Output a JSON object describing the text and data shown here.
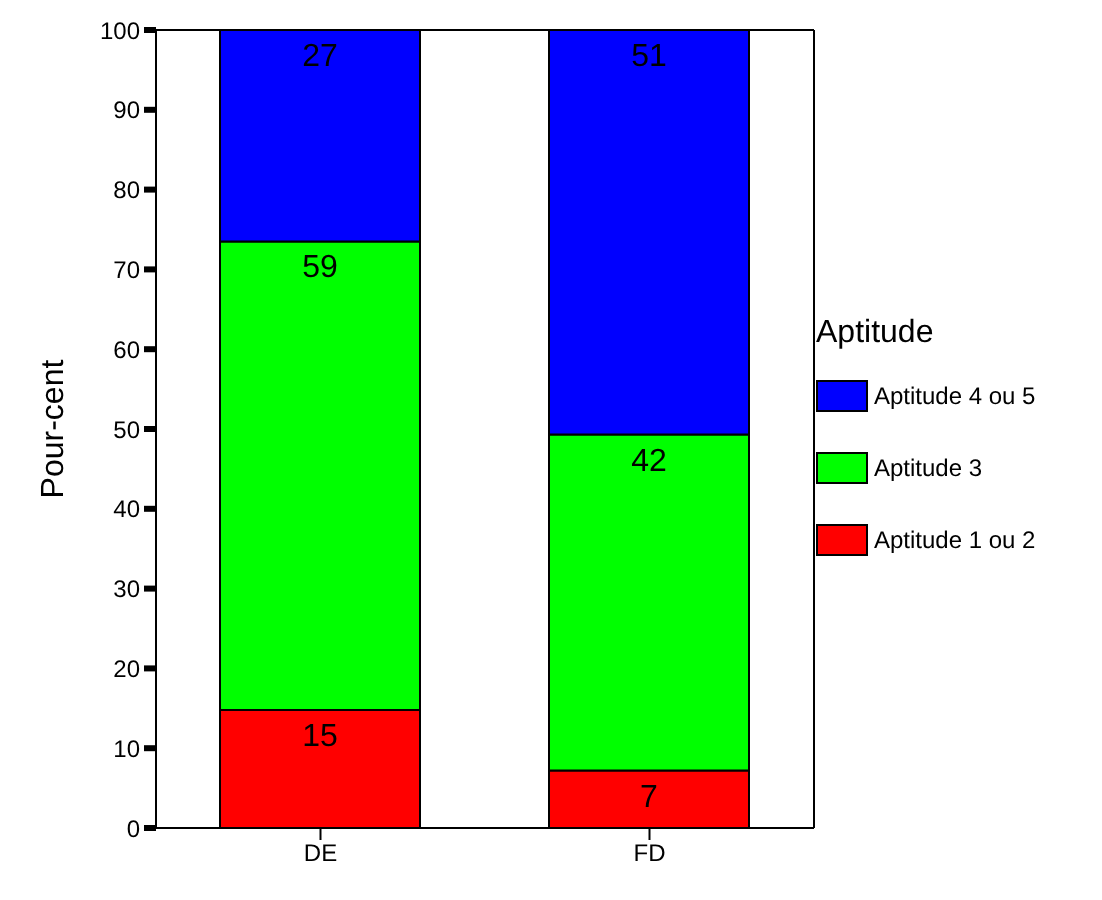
{
  "chart_data": {
    "type": "bar",
    "stacked": true,
    "ylabel": "Pour-cent",
    "legend_title": "Aptitude",
    "legend": "right",
    "categories": [
      "DE",
      "FD"
    ],
    "ylim": [
      0,
      100
    ],
    "yticks": [
      0,
      10,
      20,
      30,
      40,
      50,
      60,
      70,
      80,
      90,
      100
    ],
    "series": [
      {
        "name": "Aptitude 1 ou 2",
        "color": "#ff0000",
        "values": [
          14.8,
          7.2
        ],
        "value_labels": [
          "15",
          "7"
        ]
      },
      {
        "name": "Aptitude 3",
        "color": "#00ff00",
        "values": [
          58.7,
          42.1
        ],
        "value_labels": [
          "59",
          "42"
        ]
      },
      {
        "name": "Aptitude 4 ou 5",
        "color": "#0000ff",
        "values": [
          26.5,
          50.7
        ],
        "value_labels": [
          "27",
          "51"
        ]
      }
    ]
  }
}
